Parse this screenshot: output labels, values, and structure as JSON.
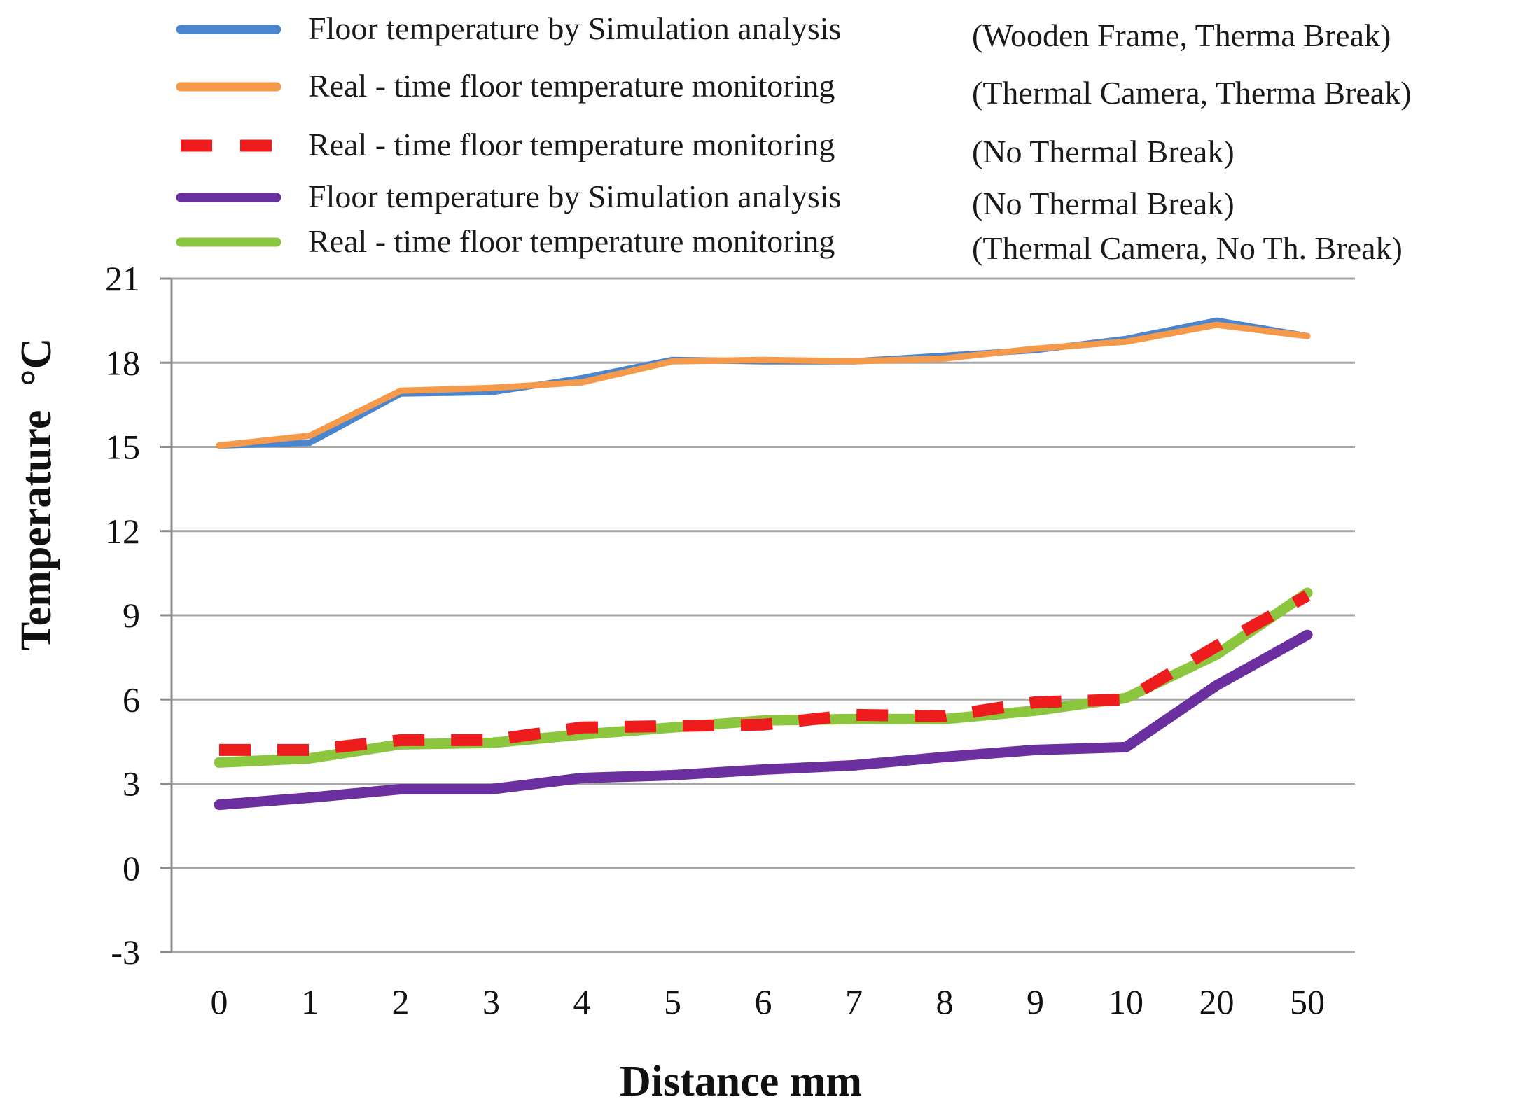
{
  "chart_data": {
    "type": "line",
    "xlabel": "Distance  mm",
    "ylabel": "Temperature",
    "ylabel_unit": "°C",
    "categories": [
      "0",
      "1",
      "2",
      "3",
      "4",
      "5",
      "6",
      "7",
      "8",
      "9",
      "10",
      "20",
      "50"
    ],
    "yticks": [
      "21",
      "18",
      "15",
      "12",
      "9",
      "6",
      "3",
      "0",
      "-3"
    ],
    "ylim": [
      -3,
      21
    ],
    "grid": "horizontal",
    "legend_position": "top",
    "series": [
      {
        "name": "Floor temperature by Simulation analysis",
        "note": "(Wooden Frame, Therma Break)",
        "color": "#4a86cf",
        "style": "solid",
        "values": [
          15.05,
          15.15,
          16.9,
          16.95,
          17.45,
          18.1,
          18.05,
          18.05,
          18.25,
          18.45,
          18.85,
          19.5,
          18.95
        ]
      },
      {
        "name": "Real - time floor temperature monitoring",
        "note": "(Thermal Camera, Therma Break)",
        "color": "#f59a4a",
        "style": "solid",
        "values": [
          15.05,
          15.4,
          17.0,
          17.1,
          17.3,
          18.05,
          18.1,
          18.05,
          18.15,
          18.5,
          18.75,
          19.35,
          18.95
        ]
      },
      {
        "name": "Real - time floor temperature monitoring",
        "note": "(No Thermal Break)",
        "color": "#ee1c1c",
        "style": "dashed",
        "values": [
          4.2,
          4.2,
          4.55,
          4.55,
          5.0,
          5.05,
          5.1,
          5.45,
          5.4,
          5.9,
          6.0,
          7.9,
          9.7
        ]
      },
      {
        "name": "Floor temperature by Simulation analysis",
        "note": "(No Thermal Break)",
        "color": "#6b2fa0",
        "style": "solid",
        "values": [
          2.25,
          2.5,
          2.8,
          2.8,
          3.2,
          3.3,
          3.5,
          3.65,
          3.95,
          4.2,
          4.3,
          6.5,
          8.3
        ]
      },
      {
        "name": "Real - time floor temperature monitoring",
        "note": "(Thermal Camera, No Th. Break)",
        "color": "#8cc63f",
        "style": "solid",
        "values": [
          3.75,
          3.9,
          4.4,
          4.45,
          4.75,
          5.0,
          5.25,
          5.3,
          5.3,
          5.6,
          6.05,
          7.6,
          9.8
        ]
      }
    ]
  }
}
